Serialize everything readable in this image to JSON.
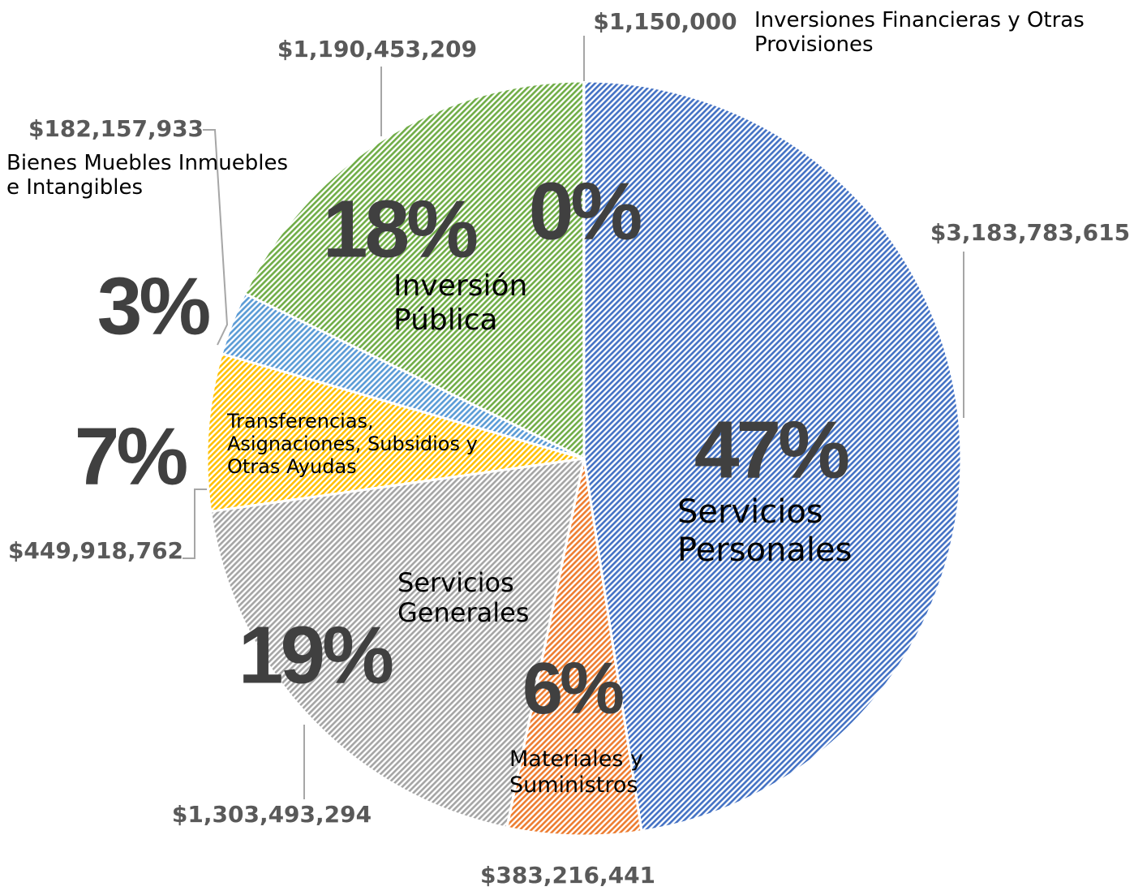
{
  "chart_data": {
    "type": "pie",
    "categories": [
      "Servicios Personales",
      "Materiales y Suministros",
      "Servicios Generales",
      "Transferencias, Asignaciones, Subsidios y Otras Ayudas",
      "Bienes Muebles Inmuebles e Intangibles",
      "Inversión Pública",
      "Inversiones Financieras y Otras Provisiones"
    ],
    "values": [
      3183783615,
      383216441,
      1303493294,
      449918762,
      182157933,
      1190453209,
      1150000
    ],
    "value_labels": [
      "$3,183,783,615",
      "$383,216,441",
      "$1,303,493,294",
      "$449,918,762",
      "$182,157,933",
      "$1,190,453,209",
      "$1,150,000"
    ],
    "percent_labels": [
      "47%",
      "6%",
      "19%",
      "7%",
      "3%",
      "18%",
      "0%"
    ],
    "colors": [
      "#4472c4",
      "#ed7d31",
      "#a5a5a5",
      "#ffc000",
      "#5b9bd5",
      "#70ad47",
      "#264478"
    ]
  }
}
